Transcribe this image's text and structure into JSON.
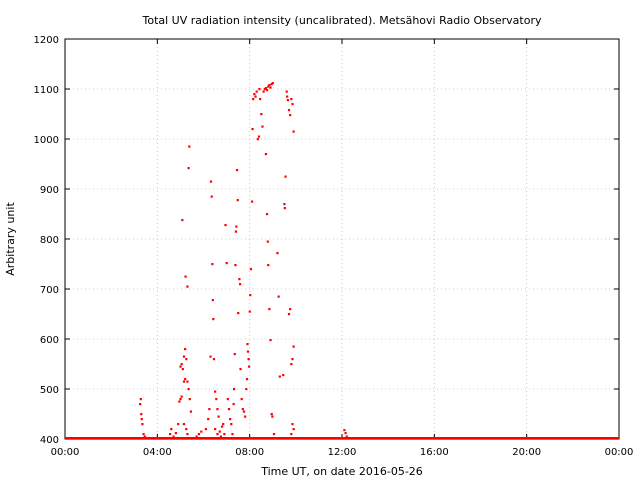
{
  "chart_data": {
    "type": "scatter",
    "title": "Total UV radiation intensity (uncalibrated). Metsähovi Radio Observatory",
    "xlabel": "Time UT, on date 2016-05-26",
    "ylabel": "Arbitrary unit",
    "xlim": [
      0,
      24
    ],
    "ylim": [
      400,
      1200
    ],
    "x_ticks": [
      0,
      4,
      8,
      12,
      16,
      20,
      24
    ],
    "x_tick_labels": [
      "00:00",
      "04:00",
      "08:00",
      "12:00",
      "16:00",
      "20:00",
      "00:00"
    ],
    "y_ticks": [
      400,
      500,
      600,
      700,
      800,
      900,
      1000,
      1100,
      1200
    ],
    "y_tick_labels": [
      "400",
      "500",
      "600",
      "700",
      "800",
      "900",
      "1000",
      "1100",
      "1200"
    ],
    "grid": true,
    "marker_color": "#ff0000",
    "baseline_value": 400,
    "series": [
      {
        "points": [
          [
            3.25,
            470
          ],
          [
            3.28,
            480
          ],
          [
            3.3,
            450
          ],
          [
            3.32,
            440
          ],
          [
            3.35,
            430
          ],
          [
            3.4,
            410
          ],
          [
            3.45,
            405
          ],
          [
            4.5,
            402
          ],
          [
            4.55,
            410
          ],
          [
            4.6,
            420
          ],
          [
            4.7,
            405
          ],
          [
            4.8,
            412
          ],
          [
            4.9,
            430
          ],
          [
            5.0,
            402
          ],
          [
            4.95,
            475
          ],
          [
            5.0,
            480
          ],
          [
            5.05,
            485
          ],
          [
            5.0,
            545
          ],
          [
            5.05,
            550
          ],
          [
            5.1,
            540
          ],
          [
            5.15,
            565
          ],
          [
            5.08,
            838
          ],
          [
            5.15,
            515
          ],
          [
            5.2,
            520
          ],
          [
            5.2,
            580
          ],
          [
            5.25,
            560
          ],
          [
            5.22,
            725
          ],
          [
            5.3,
            705
          ],
          [
            5.35,
            942
          ],
          [
            5.38,
            985
          ],
          [
            5.3,
            515
          ],
          [
            5.35,
            500
          ],
          [
            5.4,
            480
          ],
          [
            5.45,
            455
          ],
          [
            5.15,
            430
          ],
          [
            5.25,
            420
          ],
          [
            5.3,
            410
          ],
          [
            5.6,
            402
          ],
          [
            5.7,
            405
          ],
          [
            5.8,
            410
          ],
          [
            5.9,
            415
          ],
          [
            6.0,
            402
          ],
          [
            6.1,
            420
          ],
          [
            6.2,
            440
          ],
          [
            6.25,
            460
          ],
          [
            6.3,
            565
          ],
          [
            6.32,
            915
          ],
          [
            6.35,
            885
          ],
          [
            6.38,
            750
          ],
          [
            6.4,
            678
          ],
          [
            6.42,
            640
          ],
          [
            6.45,
            560
          ],
          [
            6.5,
            495
          ],
          [
            6.55,
            480
          ],
          [
            6.6,
            460
          ],
          [
            6.65,
            445
          ],
          [
            6.5,
            420
          ],
          [
            6.6,
            410
          ],
          [
            6.7,
            415
          ],
          [
            6.75,
            405
          ],
          [
            6.8,
            425
          ],
          [
            6.85,
            430
          ],
          [
            6.9,
            410
          ],
          [
            6.95,
            402
          ],
          [
            6.95,
            828
          ],
          [
            7.0,
            752
          ],
          [
            7.05,
            480
          ],
          [
            7.1,
            460
          ],
          [
            7.15,
            440
          ],
          [
            7.2,
            430
          ],
          [
            7.25,
            410
          ],
          [
            7.3,
            470
          ],
          [
            7.32,
            500
          ],
          [
            7.35,
            570
          ],
          [
            7.38,
            748
          ],
          [
            7.4,
            815
          ],
          [
            7.42,
            825
          ],
          [
            7.45,
            938
          ],
          [
            7.48,
            878
          ],
          [
            7.5,
            652
          ],
          [
            7.55,
            720
          ],
          [
            7.58,
            710
          ],
          [
            7.6,
            540
          ],
          [
            7.65,
            480
          ],
          [
            7.7,
            460
          ],
          [
            7.75,
            455
          ],
          [
            7.8,
            445
          ],
          [
            7.85,
            500
          ],
          [
            7.88,
            520
          ],
          [
            7.9,
            590
          ],
          [
            7.92,
            575
          ],
          [
            7.95,
            560
          ],
          [
            7.97,
            545
          ],
          [
            8.0,
            655
          ],
          [
            8.02,
            688
          ],
          [
            8.05,
            740
          ],
          [
            8.1,
            875
          ],
          [
            8.12,
            1020
          ],
          [
            8.15,
            1080
          ],
          [
            8.2,
            1090
          ],
          [
            8.25,
            1085
          ],
          [
            8.3,
            1095
          ],
          [
            8.35,
            1000
          ],
          [
            8.4,
            1005
          ],
          [
            8.42,
            1100
          ],
          [
            8.45,
            1080
          ],
          [
            8.5,
            1050
          ],
          [
            8.55,
            1025
          ],
          [
            8.6,
            1095
          ],
          [
            8.65,
            1100
          ],
          [
            8.7,
            1102
          ],
          [
            8.75,
            1098
          ],
          [
            8.8,
            1105
          ],
          [
            8.85,
            1108
          ],
          [
            8.9,
            1103
          ],
          [
            8.95,
            1110
          ],
          [
            9.0,
            1112
          ],
          [
            8.7,
            970
          ],
          [
            8.75,
            850
          ],
          [
            8.78,
            795
          ],
          [
            8.8,
            748
          ],
          [
            8.85,
            660
          ],
          [
            8.9,
            598
          ],
          [
            8.95,
            450
          ],
          [
            8.98,
            445
          ],
          [
            9.05,
            410
          ],
          [
            9.1,
            402
          ],
          [
            9.2,
            772
          ],
          [
            9.25,
            685
          ],
          [
            9.3,
            525
          ],
          [
            9.45,
            528
          ],
          [
            9.5,
            870
          ],
          [
            9.52,
            862
          ],
          [
            9.55,
            925
          ],
          [
            9.6,
            1095
          ],
          [
            9.62,
            1085
          ],
          [
            9.65,
            1078
          ],
          [
            9.7,
            1058
          ],
          [
            9.75,
            1048
          ],
          [
            9.8,
            1080
          ],
          [
            9.85,
            1070
          ],
          [
            9.9,
            1015
          ],
          [
            9.7,
            650
          ],
          [
            9.75,
            660
          ],
          [
            9.8,
            550
          ],
          [
            9.85,
            560
          ],
          [
            9.9,
            585
          ],
          [
            9.85,
            430
          ],
          [
            9.9,
            420
          ],
          [
            9.8,
            410
          ],
          [
            10.0,
            402
          ],
          [
            12.1,
            418
          ],
          [
            12.15,
            412
          ],
          [
            12.2,
            405
          ]
        ]
      }
    ]
  }
}
